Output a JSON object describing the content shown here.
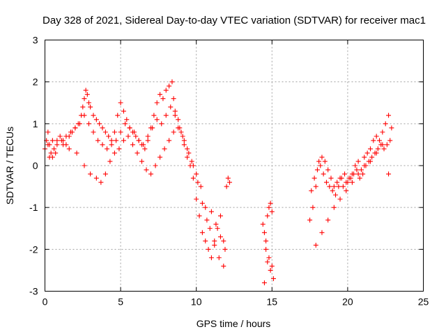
{
  "chart_data": {
    "type": "scatter",
    "title": "Day 328 of 2021, Sidereal Day-to-day VTEC variation (SDTVAR) for receiver mac1",
    "xlabel": "GPS time / hours",
    "ylabel": "SDTVAR / TECUs",
    "xlim": [
      0,
      25
    ],
    "ylim": [
      -3,
      3
    ],
    "xticks": [
      0,
      5,
      10,
      15,
      20,
      25
    ],
    "yticks": [
      -3,
      -2,
      -1,
      0,
      1,
      2,
      3
    ],
    "grid": true,
    "marker": "+",
    "color": "#ff0000",
    "series": [
      {
        "name": "SDTVAR",
        "x": [
          0.0,
          0.1,
          0.2,
          0.3,
          0.4,
          0.5,
          0.6,
          0.8,
          1.0,
          1.2,
          1.4,
          1.6,
          1.8,
          2.0,
          2.2,
          2.4,
          2.5,
          2.6,
          2.7,
          2.8,
          2.9,
          3.0,
          3.2,
          3.4,
          3.6,
          3.8,
          4.0,
          4.2,
          4.4,
          4.6,
          4.8,
          5.0,
          5.2,
          5.4,
          5.6,
          5.8,
          6.0,
          6.2,
          6.4,
          6.6,
          6.8,
          7.0,
          7.2,
          7.4,
          7.6,
          7.8,
          8.0,
          8.2,
          8.4,
          8.5,
          8.6,
          8.8,
          9.0,
          9.2,
          9.4,
          9.6,
          9.8,
          10.0,
          10.2,
          10.4,
          10.6,
          10.8,
          11.0,
          11.2,
          11.4,
          11.6,
          11.8,
          12.0,
          12.2,
          0.2,
          0.5,
          0.8,
          1.1,
          1.4,
          1.7,
          2.0,
          2.3,
          2.6,
          2.9,
          3.2,
          3.5,
          3.8,
          4.1,
          4.4,
          4.7,
          5.0,
          5.3,
          5.6,
          5.9,
          6.2,
          6.5,
          6.8,
          7.1,
          7.4,
          7.7,
          8.0,
          8.3,
          8.6,
          8.9,
          9.2,
          9.5,
          9.8,
          10.1,
          10.4,
          10.7,
          11.0,
          11.3,
          11.6,
          11.9,
          0.3,
          0.7,
          1.2,
          1.6,
          2.1,
          2.6,
          3.0,
          3.4,
          3.7,
          4.0,
          4.3,
          4.6,
          4.9,
          5.2,
          5.5,
          5.8,
          6.1,
          6.4,
          6.7,
          7.0,
          7.3,
          7.6,
          7.9,
          8.2,
          8.5,
          8.8,
          9.1,
          9.4,
          9.7,
          10.0,
          10.3,
          10.6,
          10.9,
          11.2,
          11.5,
          11.8,
          12.1,
          14.4,
          14.5,
          14.6,
          14.7,
          14.8,
          14.9,
          15.0,
          14.5,
          14.7,
          14.9,
          15.1,
          14.6,
          14.8,
          15.0,
          17.5,
          17.7,
          17.9,
          18.1,
          18.3,
          18.5,
          18.7,
          18.9,
          19.1,
          19.3,
          19.5,
          19.7,
          19.9,
          20.1,
          20.3,
          20.5,
          20.7,
          20.9,
          21.1,
          21.3,
          21.5,
          21.7,
          21.9,
          22.1,
          22.3,
          22.5,
          22.7,
          22.9,
          17.6,
          17.8,
          18.0,
          18.2,
          18.4,
          18.6,
          18.8,
          19.0,
          19.2,
          19.4,
          19.6,
          19.8,
          20.0,
          20.2,
          20.4,
          20.6,
          20.8,
          21.0,
          21.2,
          21.4,
          21.6,
          21.8,
          22.0,
          22.2,
          22.4,
          22.6,
          22.8,
          17.9,
          18.3,
          18.7,
          19.1,
          19.5,
          19.9,
          20.3,
          20.7,
          21.1,
          21.5,
          21.9,
          22.3,
          22.7
        ],
        "y": [
          0.4,
          0.6,
          0.8,
          0.5,
          0.3,
          0.2,
          0.4,
          0.6,
          0.7,
          0.6,
          0.5,
          0.7,
          0.8,
          0.9,
          1.0,
          1.2,
          1.4,
          1.6,
          1.8,
          1.7,
          1.5,
          1.4,
          1.2,
          1.1,
          1.0,
          0.9,
          0.8,
          0.7,
          0.6,
          0.8,
          1.2,
          1.5,
          1.3,
          1.1,
          0.9,
          0.8,
          0.7,
          0.6,
          0.5,
          0.4,
          0.6,
          0.9,
          1.2,
          1.5,
          1.7,
          1.6,
          1.8,
          1.9,
          2.0,
          1.6,
          1.3,
          1.1,
          0.8,
          0.5,
          0.2,
          0.0,
          -0.3,
          -0.8,
          -1.2,
          -1.6,
          -1.8,
          -2.0,
          -2.2,
          -1.9,
          -1.5,
          -1.2,
          -1.8,
          -0.5,
          -0.4,
          0.5,
          0.6,
          0.5,
          0.6,
          0.7,
          0.8,
          0.9,
          1.0,
          1.2,
          1.0,
          0.8,
          0.6,
          0.5,
          0.4,
          0.5,
          0.6,
          0.8,
          1.0,
          0.9,
          0.8,
          0.6,
          0.5,
          0.7,
          0.9,
          1.1,
          1.0,
          1.2,
          1.4,
          1.2,
          0.9,
          0.6,
          0.3,
          0.0,
          -0.4,
          -0.9,
          -1.3,
          -1.1,
          -1.4,
          -1.7,
          -2.0,
          0.2,
          0.3,
          0.5,
          0.4,
          0.3,
          0.0,
          -0.2,
          -0.3,
          -0.4,
          -0.2,
          0.1,
          0.3,
          0.4,
          0.6,
          0.7,
          0.5,
          0.3,
          0.1,
          -0.1,
          -0.2,
          0.0,
          0.2,
          0.4,
          0.6,
          0.8,
          0.9,
          0.7,
          0.4,
          0.1,
          -0.2,
          -0.5,
          -1.0,
          -1.5,
          -1.8,
          -2.2,
          -2.4,
          -0.3,
          -1.4,
          -1.6,
          -1.8,
          -1.2,
          -1.0,
          -0.9,
          -1.1,
          -2.8,
          -2.3,
          -2.5,
          -2.7,
          -2.0,
          -2.2,
          -2.4,
          -1.3,
          -1.0,
          -0.5,
          0.1,
          0.2,
          0.1,
          -0.1,
          -0.3,
          -0.5,
          -0.4,
          -0.3,
          -0.5,
          -0.4,
          -0.3,
          -0.2,
          0.0,
          0.1,
          -0.1,
          0.2,
          0.3,
          0.4,
          0.6,
          0.7,
          0.6,
          0.8,
          1.0,
          1.2,
          0.9,
          -0.6,
          -0.3,
          -0.1,
          0.0,
          -0.2,
          -0.4,
          -0.5,
          -0.6,
          -0.7,
          -0.5,
          -0.3,
          -0.2,
          -0.4,
          -0.3,
          -0.2,
          -0.1,
          -0.3,
          -0.2,
          0.0,
          0.1,
          0.2,
          0.3,
          0.4,
          0.5,
          0.4,
          0.5,
          0.6,
          -1.9,
          -1.6,
          -1.3,
          -1.0,
          -0.8,
          -0.6,
          -0.4,
          -0.2,
          0.0,
          0.1,
          0.3,
          0.5,
          -0.2
        ]
      }
    ]
  }
}
